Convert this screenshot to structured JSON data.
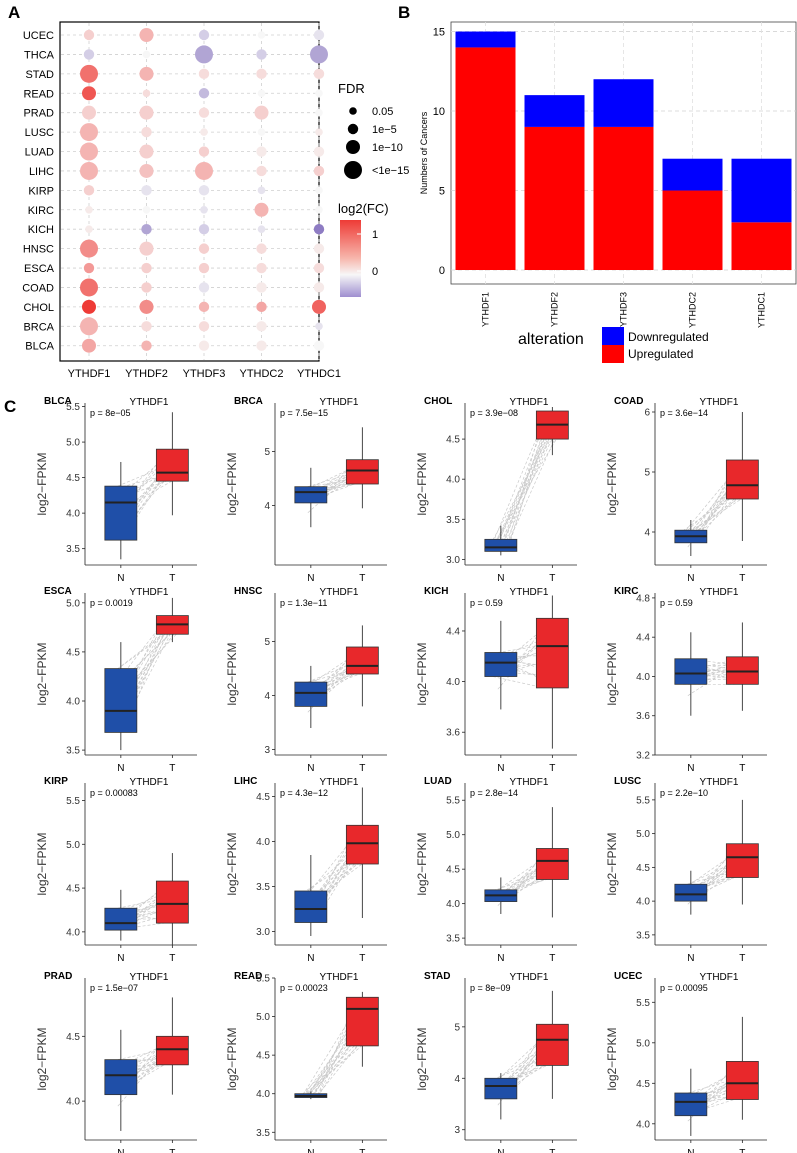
{
  "panel_labels": {
    "a": "A",
    "b": "B",
    "c": "C"
  },
  "chart_data": [
    {
      "id": "panel-a",
      "type": "scatter",
      "subtype": "dot-matrix",
      "x_categories": [
        "YTHDF1",
        "YTHDF2",
        "YTHDF3",
        "YTHDC2",
        "YTHDC1"
      ],
      "y_categories": [
        "UCEC",
        "THCA",
        "STAD",
        "READ",
        "PRAD",
        "LUSC",
        "LUAD",
        "LIHC",
        "KIRP",
        "KIRC",
        "KICH",
        "HNSC",
        "ESCA",
        "COAD",
        "CHOL",
        "BRCA",
        "BLCA"
      ],
      "log2fc": [
        [
          0.3,
          0.5,
          -0.2,
          0.0,
          -0.1
        ],
        [
          -0.2,
          0.0,
          -0.4,
          -0.2,
          -0.4
        ],
        [
          1.0,
          0.5,
          0.2,
          0.2,
          0.2
        ],
        [
          1.2,
          0.2,
          -0.3,
          0.0,
          0.0
        ],
        [
          0.3,
          0.3,
          0.2,
          0.3,
          0.0
        ],
        [
          0.5,
          0.2,
          0.1,
          0.0,
          0.1
        ],
        [
          0.5,
          0.3,
          0.3,
          0.1,
          0.1
        ],
        [
          0.5,
          0.4,
          0.5,
          0.2,
          0.3
        ],
        [
          0.3,
          -0.1,
          -0.1,
          -0.1,
          0.0
        ],
        [
          0.1,
          0.0,
          -0.1,
          0.5,
          0.0
        ],
        [
          0.1,
          -0.4,
          -0.2,
          -0.1,
          -0.6
        ],
        [
          0.8,
          0.3,
          0.3,
          0.2,
          0.1
        ],
        [
          0.7,
          0.3,
          0.3,
          0.2,
          0.2
        ],
        [
          1.0,
          0.3,
          -0.1,
          0.1,
          0.1
        ],
        [
          1.4,
          0.8,
          0.5,
          0.6,
          1.1
        ],
        [
          0.5,
          0.2,
          0.2,
          0.1,
          -0.1
        ],
        [
          0.6,
          0.5,
          0.1,
          0.1,
          0.0
        ]
      ],
      "fdr_level": [
        [
          2,
          3,
          2,
          1,
          2
        ],
        [
          2,
          1,
          4,
          2,
          4
        ],
        [
          4,
          3,
          2,
          2,
          2
        ],
        [
          3,
          1,
          2,
          1,
          1
        ],
        [
          3,
          3,
          2,
          3,
          1
        ],
        [
          4,
          2,
          1,
          1,
          1
        ],
        [
          4,
          3,
          2,
          2,
          2
        ],
        [
          4,
          3,
          4,
          2,
          2
        ],
        [
          2,
          2,
          2,
          1,
          1
        ],
        [
          1,
          1,
          1,
          3,
          1
        ],
        [
          1,
          2,
          2,
          1,
          2
        ],
        [
          4,
          3,
          2,
          2,
          2
        ],
        [
          2,
          2,
          2,
          2,
          2
        ],
        [
          4,
          2,
          2,
          2,
          2
        ],
        [
          3,
          3,
          2,
          2,
          3
        ],
        [
          4,
          2,
          2,
          2,
          1
        ],
        [
          3,
          2,
          2,
          2,
          2
        ]
      ],
      "size_legend": {
        "title": "FDR",
        "labels": [
          "0.05",
          "1e−5",
          "1e−10",
          "<1e−15"
        ]
      },
      "color_legend": {
        "title": "log2(FC)",
        "ticks": [
          "1",
          "0"
        ],
        "range": [
          -0.6,
          1.5
        ]
      },
      "colors": {
        "high": "#ee3b36",
        "mid": "#f7f7f7",
        "low": "#8e7cc3"
      }
    },
    {
      "id": "panel-b",
      "type": "bar",
      "stacked": true,
      "categories": [
        "YTHDF1",
        "YTHDF2",
        "YTHDF3",
        "YTHDC2",
        "YTHDC1"
      ],
      "series": [
        {
          "name": "Upregulated",
          "values": [
            14,
            9,
            9,
            5,
            3
          ],
          "color": "#ff0000"
        },
        {
          "name": "Downregulated",
          "values": [
            1,
            2,
            3,
            2,
            4
          ],
          "color": "#0000ff"
        }
      ],
      "ylabel": "Numbers of Cancers",
      "yticks": [
        "0",
        "5",
        "10",
        "15"
      ],
      "ylim": [
        0,
        15.6
      ],
      "legend_title": "alteration"
    },
    {
      "id": "panel-c",
      "type": "boxplot",
      "gene": "YTHDF1",
      "ylabel": "log2−FPKM",
      "groups": [
        "N",
        "T"
      ],
      "colors": {
        "N": "#1f4fa8",
        "T": "#e8282b"
      },
      "plots": [
        {
          "cancer": "BLCA",
          "p": "p = 8e−05",
          "ylim": [
            3.27,
            5.55
          ],
          "ticks": [
            "3.5",
            "4.0",
            "4.5",
            "5.0",
            "5.5"
          ],
          "N": [
            3.35,
            3.62,
            4.15,
            4.38,
            4.72
          ],
          "T": [
            3.97,
            4.45,
            4.57,
            4.9,
            5.42
          ]
        },
        {
          "cancer": "BRCA",
          "p": "p = 7.5e−15",
          "ylim": [
            2.9,
            5.9
          ],
          "ticks": [
            "4",
            "5"
          ],
          "N": [
            3.6,
            4.05,
            4.25,
            4.35,
            4.7
          ],
          "T": [
            3.95,
            4.4,
            4.65,
            4.85,
            5.45
          ]
        },
        {
          "cancer": "CHOL",
          "p": "p = 3.9e−08",
          "ylim": [
            2.93,
            4.95
          ],
          "ticks": [
            "3.0",
            "3.5",
            "4.0",
            "4.5"
          ],
          "N": [
            3.05,
            3.1,
            3.15,
            3.25,
            3.42
          ],
          "T": [
            4.3,
            4.5,
            4.68,
            4.85,
            4.9
          ]
        },
        {
          "cancer": "COAD",
          "p": "p = 3.6e−14",
          "ylim": [
            3.45,
            6.15
          ],
          "ticks": [
            "4",
            "5",
            "6"
          ],
          "N": [
            3.6,
            3.82,
            3.93,
            4.03,
            4.2
          ],
          "T": [
            3.85,
            4.55,
            4.78,
            5.2,
            6.0
          ]
        },
        {
          "cancer": "ESCA",
          "p": "p = 0.0019",
          "ylim": [
            3.45,
            5.1
          ],
          "ticks": [
            "3.5",
            "4.0",
            "4.5",
            "5.0"
          ],
          "N": [
            3.5,
            3.68,
            3.9,
            4.33,
            4.6
          ],
          "T": [
            4.6,
            4.68,
            4.78,
            4.87,
            5.05
          ]
        },
        {
          "cancer": "HNSC",
          "p": "p = 1.3e−11",
          "ylim": [
            2.9,
            5.9
          ],
          "ticks": [
            "3",
            "4",
            "5"
          ],
          "N": [
            3.4,
            3.8,
            4.05,
            4.25,
            4.55
          ],
          "T": [
            3.8,
            4.4,
            4.55,
            4.9,
            5.3
          ]
        },
        {
          "cancer": "KICH",
          "p": "p = 0.59",
          "ylim": [
            3.42,
            4.7
          ],
          "ticks": [
            "3.6",
            "4.0",
            "4.4"
          ],
          "N": [
            3.78,
            4.04,
            4.15,
            4.23,
            4.48
          ],
          "T": [
            3.47,
            3.95,
            4.28,
            4.5,
            4.68
          ]
        },
        {
          "cancer": "KIRC",
          "p": "p = 0.59",
          "ylim": [
            3.2,
            4.85
          ],
          "ticks": [
            "3.2",
            "3.6",
            "4.0",
            "4.4",
            "4.8"
          ],
          "N": [
            3.6,
            3.92,
            4.03,
            4.18,
            4.45
          ],
          "T": [
            3.65,
            3.92,
            4.05,
            4.2,
            4.55
          ]
        },
        {
          "cancer": "KIRP",
          "p": "p = 0.00083",
          "ylim": [
            3.85,
            5.7
          ],
          "ticks": [
            "4.0",
            "4.5",
            "5.0",
            "5.5"
          ],
          "N": [
            3.9,
            4.02,
            4.1,
            4.27,
            4.48
          ],
          "T": [
            3.85,
            4.1,
            4.32,
            4.58,
            4.9
          ]
        },
        {
          "cancer": "LIHC",
          "p": "p = 4.3e−12",
          "ylim": [
            2.85,
            4.65
          ],
          "ticks": [
            "3.0",
            "3.5",
            "4.0",
            "4.5"
          ],
          "N": [
            2.95,
            3.1,
            3.25,
            3.45,
            3.85
          ],
          "T": [
            3.15,
            3.75,
            3.98,
            4.18,
            4.6
          ]
        },
        {
          "cancer": "LUAD",
          "p": "p = 2.8e−14",
          "ylim": [
            3.4,
            5.75
          ],
          "ticks": [
            "3.5",
            "4.0",
            "4.5",
            "5.0",
            "5.5"
          ],
          "N": [
            3.85,
            4.03,
            4.12,
            4.2,
            4.38
          ],
          "T": [
            3.8,
            4.35,
            4.62,
            4.8,
            5.4
          ]
        },
        {
          "cancer": "LUSC",
          "p": "p = 2.2e−10",
          "ylim": [
            3.35,
            5.75
          ],
          "ticks": [
            "3.5",
            "4.0",
            "4.5",
            "5.0",
            "5.5"
          ],
          "N": [
            3.8,
            4.0,
            4.1,
            4.25,
            4.45
          ],
          "T": [
            3.95,
            4.35,
            4.65,
            4.85,
            5.5
          ]
        },
        {
          "cancer": "PRAD",
          "p": "p = 1.5e−07",
          "ylim": [
            3.7,
            4.95
          ],
          "ticks": [
            "4.0",
            "4.5"
          ],
          "N": [
            3.77,
            4.05,
            4.2,
            4.32,
            4.55
          ],
          "T": [
            4.05,
            4.28,
            4.4,
            4.5,
            4.8
          ]
        },
        {
          "cancer": "READ",
          "p": "p = 0.00023",
          "ylim": [
            3.4,
            5.5
          ],
          "ticks": [
            "3.5",
            "4.0",
            "4.5",
            "5.0",
            "5.5"
          ],
          "N": [
            3.93,
            3.95,
            3.97,
            4.0,
            4.03
          ],
          "T": [
            4.35,
            4.62,
            5.1,
            5.25,
            5.32
          ]
        },
        {
          "cancer": "STAD",
          "p": "p = 8e−09",
          "ylim": [
            2.8,
            5.95
          ],
          "ticks": [
            "3",
            "4",
            "5"
          ],
          "N": [
            3.2,
            3.6,
            3.85,
            4.0,
            4.1
          ],
          "T": [
            3.6,
            4.25,
            4.75,
            5.05,
            5.7
          ]
        },
        {
          "cancer": "UCEC",
          "p": "p = 0.00095",
          "ylim": [
            3.8,
            5.8
          ],
          "ticks": [
            "4.0",
            "4.5",
            "5.0",
            "5.5"
          ],
          "N": [
            3.85,
            4.1,
            4.27,
            4.38,
            4.68
          ],
          "T": [
            4.05,
            4.3,
            4.5,
            4.77,
            5.32
          ]
        }
      ]
    }
  ]
}
